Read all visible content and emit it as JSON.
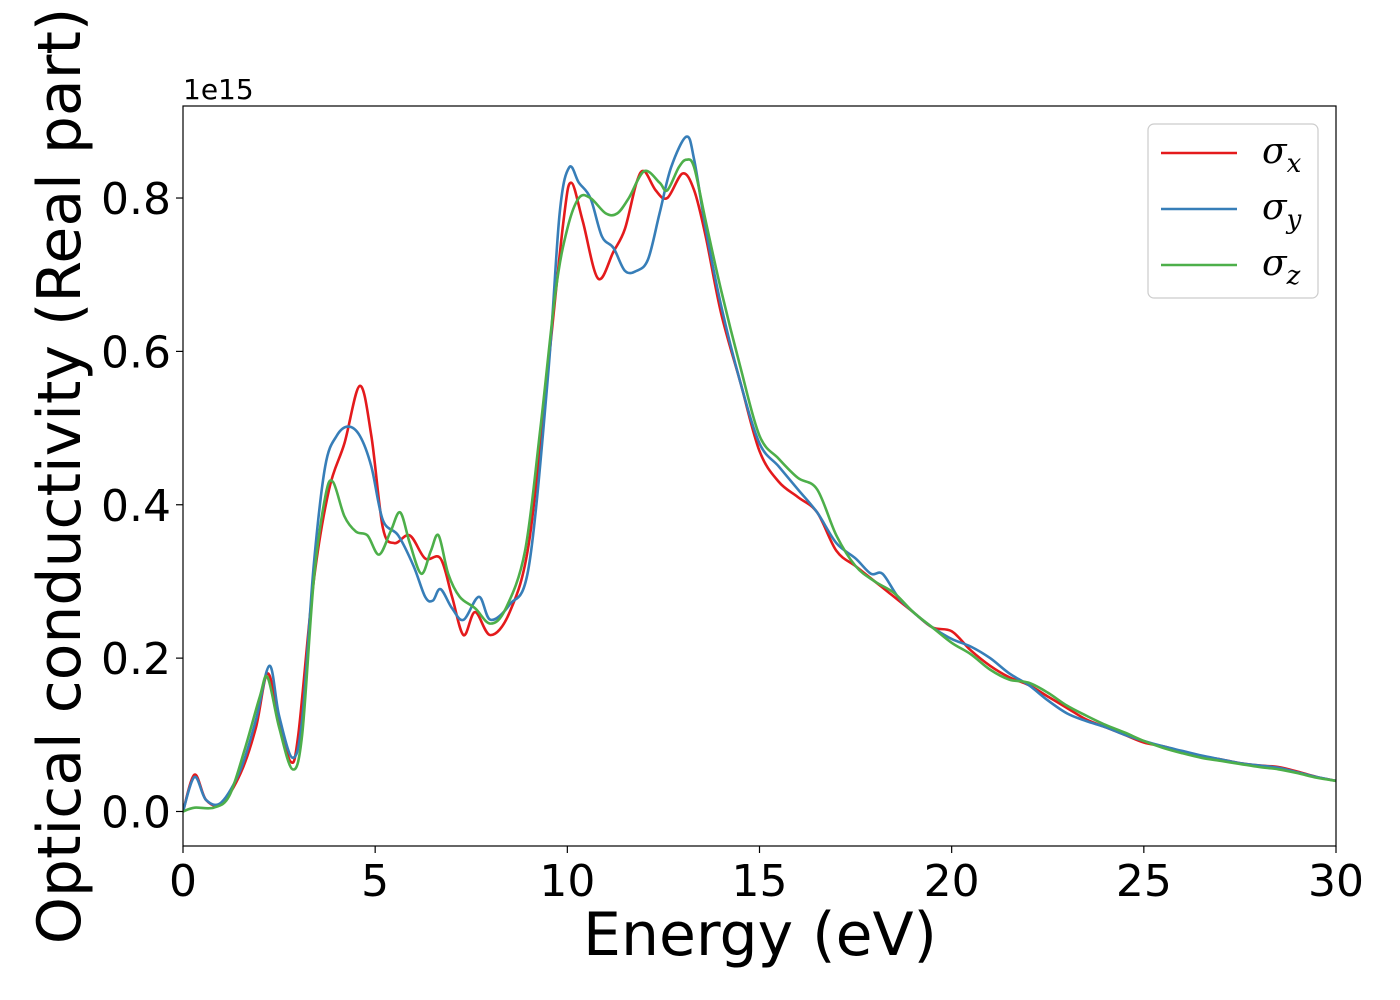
{
  "chart_data": {
    "type": "line",
    "xlabel": "Energy (eV)",
    "ylabel": "Optical conductivity (Real part)",
    "y_offset_label": "1e15",
    "xlim": [
      0,
      30
    ],
    "ylim": [
      -0.045,
      0.92
    ],
    "x_ticks": [
      0,
      5,
      10,
      15,
      20,
      25,
      30
    ],
    "x_tick_labels": [
      "0",
      "5",
      "10",
      "15",
      "20",
      "25",
      "30"
    ],
    "y_ticks": [
      0.0,
      0.2,
      0.4,
      0.6,
      0.8
    ],
    "y_tick_labels": [
      "0.0",
      "0.2",
      "0.4",
      "0.6",
      "0.8"
    ],
    "grid": false,
    "legend_position": "top-right",
    "series": [
      {
        "name": "σx",
        "symbol": "σ",
        "subscript": "x",
        "color": "#e41a1c",
        "points": [
          [
            0,
            0.0
          ],
          [
            0.3,
            0.048
          ],
          [
            0.6,
            0.015
          ],
          [
            1.0,
            0.01
          ],
          [
            1.5,
            0.05
          ],
          [
            1.9,
            0.11
          ],
          [
            2.2,
            0.18
          ],
          [
            2.5,
            0.12
          ],
          [
            2.8,
            0.065
          ],
          [
            3.0,
            0.1
          ],
          [
            3.4,
            0.3
          ],
          [
            3.8,
            0.42
          ],
          [
            4.2,
            0.48
          ],
          [
            4.6,
            0.555
          ],
          [
            4.9,
            0.49
          ],
          [
            5.2,
            0.37
          ],
          [
            5.5,
            0.35
          ],
          [
            5.9,
            0.36
          ],
          [
            6.3,
            0.33
          ],
          [
            6.7,
            0.33
          ],
          [
            7.0,
            0.28
          ],
          [
            7.3,
            0.23
          ],
          [
            7.6,
            0.26
          ],
          [
            8.0,
            0.23
          ],
          [
            8.5,
            0.26
          ],
          [
            9.0,
            0.35
          ],
          [
            9.5,
            0.58
          ],
          [
            9.9,
            0.77
          ],
          [
            10.1,
            0.82
          ],
          [
            10.4,
            0.77
          ],
          [
            10.8,
            0.695
          ],
          [
            11.2,
            0.73
          ],
          [
            11.5,
            0.76
          ],
          [
            11.8,
            0.82
          ],
          [
            12.0,
            0.835
          ],
          [
            12.3,
            0.81
          ],
          [
            12.6,
            0.8
          ],
          [
            13.0,
            0.832
          ],
          [
            13.3,
            0.81
          ],
          [
            13.6,
            0.75
          ],
          [
            14.0,
            0.65
          ],
          [
            14.5,
            0.56
          ],
          [
            15.0,
            0.47
          ],
          [
            15.5,
            0.43
          ],
          [
            16.0,
            0.41
          ],
          [
            16.5,
            0.39
          ],
          [
            17.0,
            0.34
          ],
          [
            17.5,
            0.32
          ],
          [
            18.0,
            0.3
          ],
          [
            18.5,
            0.28
          ],
          [
            19.0,
            0.26
          ],
          [
            19.5,
            0.24
          ],
          [
            20.0,
            0.235
          ],
          [
            20.5,
            0.21
          ],
          [
            21.0,
            0.19
          ],
          [
            21.5,
            0.175
          ],
          [
            22.0,
            0.165
          ],
          [
            22.5,
            0.15
          ],
          [
            23.0,
            0.135
          ],
          [
            23.5,
            0.12
          ],
          [
            24.0,
            0.11
          ],
          [
            24.5,
            0.1
          ],
          [
            25.0,
            0.09
          ],
          [
            25.5,
            0.085
          ],
          [
            26.0,
            0.078
          ],
          [
            26.5,
            0.072
          ],
          [
            27.0,
            0.068
          ],
          [
            27.5,
            0.063
          ],
          [
            28.0,
            0.06
          ],
          [
            28.5,
            0.058
          ],
          [
            29.0,
            0.052
          ],
          [
            29.5,
            0.045
          ],
          [
            30.0,
            0.04
          ]
        ]
      },
      {
        "name": "σy",
        "symbol": "σ",
        "subscript": "y",
        "color": "#377eb8",
        "points": [
          [
            0,
            0.0
          ],
          [
            0.3,
            0.045
          ],
          [
            0.6,
            0.015
          ],
          [
            1.0,
            0.012
          ],
          [
            1.5,
            0.055
          ],
          [
            1.9,
            0.12
          ],
          [
            2.25,
            0.19
          ],
          [
            2.5,
            0.125
          ],
          [
            2.85,
            0.07
          ],
          [
            3.1,
            0.12
          ],
          [
            3.4,
            0.32
          ],
          [
            3.7,
            0.45
          ],
          [
            4.0,
            0.49
          ],
          [
            4.3,
            0.502
          ],
          [
            4.6,
            0.49
          ],
          [
            4.9,
            0.45
          ],
          [
            5.2,
            0.38
          ],
          [
            5.6,
            0.36
          ],
          [
            6.0,
            0.32
          ],
          [
            6.3,
            0.28
          ],
          [
            6.5,
            0.275
          ],
          [
            6.7,
            0.29
          ],
          [
            7.0,
            0.265
          ],
          [
            7.3,
            0.25
          ],
          [
            7.7,
            0.28
          ],
          [
            8.0,
            0.25
          ],
          [
            8.5,
            0.27
          ],
          [
            9.0,
            0.32
          ],
          [
            9.5,
            0.57
          ],
          [
            9.8,
            0.78
          ],
          [
            10.05,
            0.84
          ],
          [
            10.3,
            0.82
          ],
          [
            10.6,
            0.8
          ],
          [
            10.9,
            0.75
          ],
          [
            11.2,
            0.735
          ],
          [
            11.5,
            0.705
          ],
          [
            11.8,
            0.705
          ],
          [
            12.1,
            0.72
          ],
          [
            12.4,
            0.78
          ],
          [
            12.7,
            0.84
          ],
          [
            13.1,
            0.88
          ],
          [
            13.3,
            0.85
          ],
          [
            13.6,
            0.76
          ],
          [
            14.0,
            0.66
          ],
          [
            14.5,
            0.56
          ],
          [
            15.0,
            0.48
          ],
          [
            15.5,
            0.45
          ],
          [
            16.0,
            0.42
          ],
          [
            16.5,
            0.39
          ],
          [
            17.0,
            0.35
          ],
          [
            17.5,
            0.33
          ],
          [
            17.9,
            0.31
          ],
          [
            18.2,
            0.31
          ],
          [
            18.6,
            0.28
          ],
          [
            19.0,
            0.26
          ],
          [
            19.5,
            0.24
          ],
          [
            20.0,
            0.225
          ],
          [
            20.5,
            0.215
          ],
          [
            21.0,
            0.2
          ],
          [
            21.5,
            0.18
          ],
          [
            22.0,
            0.165
          ],
          [
            22.5,
            0.145
          ],
          [
            23.0,
            0.128
          ],
          [
            23.5,
            0.118
          ],
          [
            24.0,
            0.11
          ],
          [
            24.5,
            0.1
          ],
          [
            25.0,
            0.092
          ],
          [
            25.5,
            0.085
          ],
          [
            26.0,
            0.079
          ],
          [
            26.5,
            0.073
          ],
          [
            27.0,
            0.068
          ],
          [
            27.5,
            0.063
          ],
          [
            28.0,
            0.06
          ],
          [
            28.5,
            0.057
          ],
          [
            29.0,
            0.051
          ],
          [
            29.5,
            0.045
          ],
          [
            30.0,
            0.04
          ]
        ]
      },
      {
        "name": "σz",
        "symbol": "σ",
        "subscript": "z",
        "color": "#4daf4a",
        "points": [
          [
            0,
            0.0
          ],
          [
            0.3,
            0.005
          ],
          [
            0.8,
            0.005
          ],
          [
            1.2,
            0.02
          ],
          [
            1.6,
            0.08
          ],
          [
            2.0,
            0.15
          ],
          [
            2.2,
            0.175
          ],
          [
            2.5,
            0.11
          ],
          [
            2.85,
            0.055
          ],
          [
            3.1,
            0.1
          ],
          [
            3.4,
            0.3
          ],
          [
            3.7,
            0.41
          ],
          [
            3.9,
            0.43
          ],
          [
            4.2,
            0.385
          ],
          [
            4.5,
            0.365
          ],
          [
            4.8,
            0.36
          ],
          [
            5.1,
            0.335
          ],
          [
            5.4,
            0.365
          ],
          [
            5.65,
            0.39
          ],
          [
            5.9,
            0.35
          ],
          [
            6.2,
            0.31
          ],
          [
            6.45,
            0.34
          ],
          [
            6.65,
            0.36
          ],
          [
            6.9,
            0.31
          ],
          [
            7.2,
            0.28
          ],
          [
            7.6,
            0.265
          ],
          [
            8.0,
            0.245
          ],
          [
            8.4,
            0.265
          ],
          [
            8.9,
            0.34
          ],
          [
            9.3,
            0.5
          ],
          [
            9.7,
            0.68
          ],
          [
            10.0,
            0.76
          ],
          [
            10.3,
            0.8
          ],
          [
            10.6,
            0.8
          ],
          [
            11.0,
            0.78
          ],
          [
            11.3,
            0.78
          ],
          [
            11.6,
            0.8
          ],
          [
            12.0,
            0.835
          ],
          [
            12.4,
            0.82
          ],
          [
            12.6,
            0.81
          ],
          [
            12.9,
            0.84
          ],
          [
            13.1,
            0.85
          ],
          [
            13.3,
            0.84
          ],
          [
            13.6,
            0.77
          ],
          [
            14.0,
            0.68
          ],
          [
            14.5,
            0.58
          ],
          [
            15.0,
            0.49
          ],
          [
            15.5,
            0.46
          ],
          [
            16.0,
            0.435
          ],
          [
            16.5,
            0.42
          ],
          [
            17.0,
            0.36
          ],
          [
            17.5,
            0.32
          ],
          [
            18.0,
            0.3
          ],
          [
            18.5,
            0.285
          ],
          [
            19.0,
            0.26
          ],
          [
            19.5,
            0.24
          ],
          [
            20.0,
            0.22
          ],
          [
            20.5,
            0.205
          ],
          [
            21.0,
            0.185
          ],
          [
            21.5,
            0.172
          ],
          [
            22.0,
            0.168
          ],
          [
            22.5,
            0.155
          ],
          [
            23.0,
            0.138
          ],
          [
            23.5,
            0.125
          ],
          [
            24.0,
            0.113
          ],
          [
            24.5,
            0.103
          ],
          [
            25.0,
            0.092
          ],
          [
            25.5,
            0.083
          ],
          [
            26.0,
            0.076
          ],
          [
            26.5,
            0.07
          ],
          [
            27.0,
            0.066
          ],
          [
            27.5,
            0.062
          ],
          [
            28.0,
            0.058
          ],
          [
            28.5,
            0.055
          ],
          [
            29.0,
            0.05
          ],
          [
            29.5,
            0.044
          ],
          [
            30.0,
            0.04
          ]
        ]
      }
    ]
  }
}
